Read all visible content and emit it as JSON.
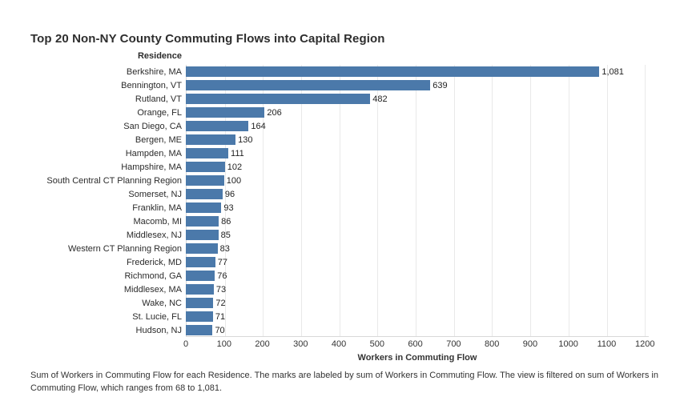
{
  "title": "Top 20 Non-NY County Commuting Flows into Capital Region",
  "column_header": "Residence",
  "caption": "Sum of Workers in Commuting Flow for each Residence.  The marks are labeled by sum of Workers in Commuting Flow. The view is filtered on sum of Workers in Commuting Flow, which ranges from 68 to 1,081.",
  "colors": {
    "bar": "#4b79aa",
    "gridline": "#e9e9e9",
    "axis_line": "#d8d8d8",
    "text": "#333333",
    "title_text": "#2e2e2e"
  },
  "chart_data": {
    "type": "bar",
    "orientation": "horizontal",
    "title": "Top 20 Non-NY County Commuting Flows into Capital Region",
    "xlabel": "Workers in Commuting Flow",
    "ylabel": "Residence",
    "xlim": [
      0,
      1200
    ],
    "plot_scale_max": 1210,
    "grid": true,
    "legend": "none",
    "tick_values": [
      0,
      100,
      200,
      300,
      400,
      500,
      600,
      700,
      800,
      900,
      1000,
      1100,
      1200
    ],
    "tick_labels": [
      "0",
      "100",
      "200",
      "300",
      "400",
      "500",
      "600",
      "700",
      "800",
      "900",
      "1000",
      "1100",
      "1200"
    ],
    "categories": [
      "Berkshire, MA",
      "Bennington, VT",
      "Rutland, VT",
      "Orange, FL",
      "San Diego, CA",
      "Bergen, ME",
      "Hampden, MA",
      "Hampshire, MA",
      "South Central CT Planning Region",
      "Somerset, NJ",
      "Franklin, MA",
      "Macomb, MI",
      "Middlesex, NJ",
      "Western CT Planning Region",
      "Frederick, MD",
      "Richmond, GA",
      "Middlesex, MA",
      "Wake, NC",
      "St. Lucie, FL",
      "Hudson, NJ"
    ],
    "values": [
      1081,
      639,
      482,
      206,
      164,
      130,
      111,
      102,
      100,
      96,
      93,
      86,
      85,
      83,
      77,
      76,
      73,
      72,
      71,
      70
    ],
    "value_labels": [
      "1,081",
      "639",
      "482",
      "206",
      "164",
      "130",
      "111",
      "102",
      "100",
      "96",
      "93",
      "86",
      "85",
      "83",
      "77",
      "76",
      "73",
      "72",
      "71",
      "70"
    ]
  }
}
